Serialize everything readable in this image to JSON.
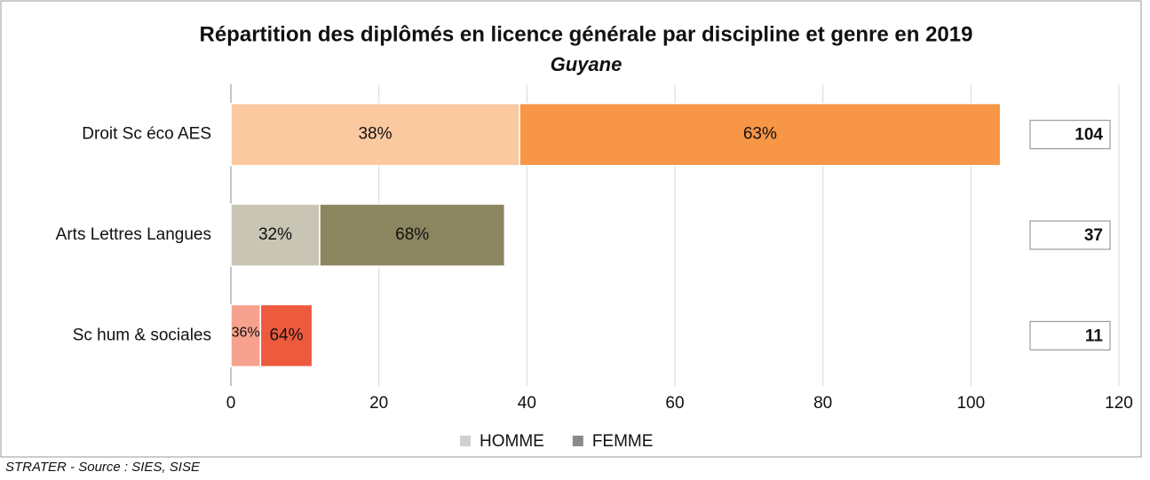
{
  "chart_data": {
    "type": "stacked_barh",
    "title": "Répartition des diplômés en licence générale par discipline et genre en 2019",
    "subtitle": "Guyane",
    "categories": [
      "Droit Sc éco AES",
      "Arts Lettres Langues",
      "Sc hum & sociales"
    ],
    "series": [
      {
        "name": "HOMME",
        "color": "#d0d0d0",
        "colors": [
          "#fbc9a0",
          "#c9c5b5",
          "#f6a28e"
        ],
        "values": [
          39,
          12,
          4
        ],
        "value_labels": [
          "38%",
          "32%",
          "36%"
        ]
      },
      {
        "name": "FEMME",
        "color": "#8a8a8a",
        "colors": [
          "#f79646",
          "#8c8660",
          "#ee5a3e"
        ],
        "values": [
          65,
          25,
          7
        ],
        "value_labels": [
          "63%",
          "68%",
          "64%"
        ]
      }
    ],
    "totals": [
      104,
      37,
      11
    ],
    "xlim": [
      0,
      120
    ],
    "xticks": [
      0,
      20,
      40,
      60,
      80,
      100,
      120
    ],
    "grid": true,
    "legend": "bottom",
    "source": "STRATER - Source : SIES, SISE"
  }
}
